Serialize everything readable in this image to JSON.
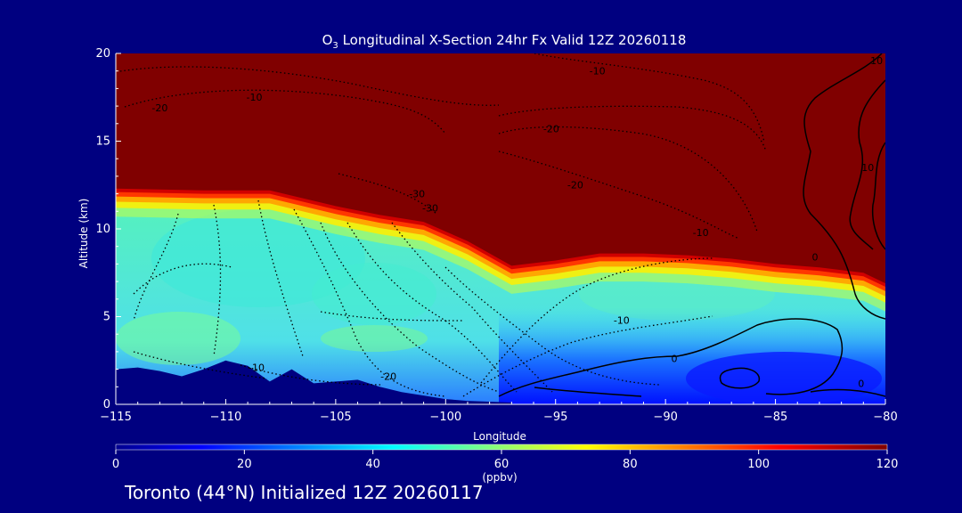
{
  "chart_data": {
    "type": "contour",
    "title_prefix": "O",
    "title_sub": "3",
    "title_rest": " Longitudinal X-Section 24hr  Fx Valid 12Z 20260118",
    "xlabel": "Longitude",
    "ylabel": "Altitude (km)",
    "xlim": [
      -115,
      -80
    ],
    "ylim": [
      0,
      20
    ],
    "xticks": [
      -115,
      -110,
      -105,
      -100,
      -95,
      -90,
      -85,
      -80
    ],
    "xtick_labels": [
      "−115",
      "−110",
      "−105",
      "−100",
      "−95",
      "−90",
      "−85",
      "−80"
    ],
    "yticks": [
      0,
      5,
      10,
      15,
      20
    ],
    "ytick_labels": [
      "0",
      "5",
      "10",
      "15",
      "20"
    ],
    "colorbar": {
      "min": 0,
      "max": 120,
      "ticks": [
        0,
        20,
        40,
        60,
        80,
        100,
        120
      ],
      "tick_labels": [
        "0",
        "20",
        "40",
        "60",
        "80",
        "100",
        "120"
      ],
      "unit": "(ppbv)"
    },
    "tropopause_height_km": {
      "lon": [
        -115,
        -111,
        -108,
        -105,
        -103,
        -101,
        -99,
        -97,
        -95,
        -93,
        -91,
        -89,
        -87,
        -85,
        -83,
        -81,
        -80
      ],
      "alt": [
        12.3,
        12.2,
        12.2,
        11.3,
        10.8,
        10.4,
        9.3,
        7.9,
        8.2,
        8.6,
        8.6,
        8.5,
        8.3,
        8.0,
        7.8,
        7.5,
        6.9
      ]
    },
    "terrain_km": {
      "lon": [
        -115,
        -114,
        -113,
        -112,
        -111,
        -110,
        -109,
        -108,
        -107,
        -106,
        -105,
        -104,
        -103,
        -102,
        -101,
        -100,
        -99,
        -98,
        -97
      ],
      "alt": [
        2.0,
        2.1,
        1.9,
        1.6,
        2.0,
        2.5,
        2.2,
        1.3,
        2.0,
        1.2,
        1.3,
        1.4,
        1.0,
        0.7,
        0.5,
        0.3,
        0.2,
        0.15,
        0.1
      ]
    },
    "contour_labels": [
      {
        "text": "-20",
        "lon": -113.0,
        "alt": 16.7
      },
      {
        "text": "-10",
        "lon": -108.7,
        "alt": 17.3
      },
      {
        "text": "-10",
        "lon": -93.1,
        "alt": 18.8
      },
      {
        "text": "-20",
        "lon": -95.2,
        "alt": 15.5
      },
      {
        "text": "-30",
        "lon": -101.3,
        "alt": 11.8
      },
      {
        "text": "-30",
        "lon": -100.7,
        "alt": 11.0
      },
      {
        "text": "-20",
        "lon": -94.1,
        "alt": 12.3
      },
      {
        "text": "-10",
        "lon": -88.4,
        "alt": 9.6
      },
      {
        "text": "-10",
        "lon": -92.0,
        "alt": 4.6
      },
      {
        "text": "-20",
        "lon": -102.6,
        "alt": 1.4
      },
      {
        "text": "-10",
        "lon": -108.6,
        "alt": 1.9
      },
      {
        "text": "0",
        "lon": -89.6,
        "alt": 2.4
      },
      {
        "text": "0",
        "lon": -83.2,
        "alt": 8.2
      },
      {
        "text": "0",
        "lon": -81.1,
        "alt": 1.0
      },
      {
        "text": "10",
        "lon": -80.8,
        "alt": 13.3
      },
      {
        "text": "10",
        "lon": -80.4,
        "alt": 19.4
      }
    ]
  },
  "footer_text": "Toronto (44°N) Initialized 12Z 20260117"
}
